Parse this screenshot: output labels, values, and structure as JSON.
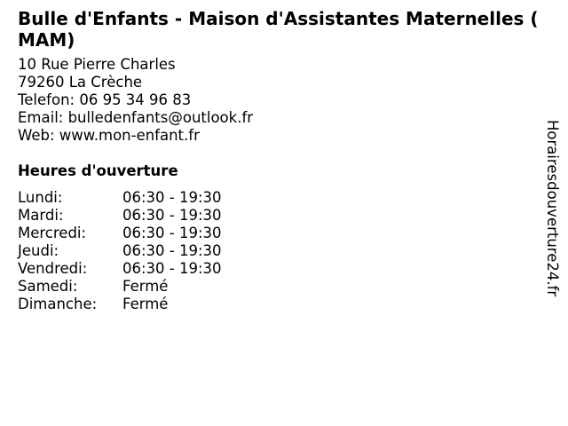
{
  "title": "Bulle d'Enfants - Maison d'Assistantes Maternelles ( MAM)",
  "address": {
    "street": "10 Rue Pierre Charles",
    "city": "79260 La Crèche",
    "phone": "Telefon: 06 95 34 96 83",
    "email": "Email: bulledenfants@outlook.fr",
    "web": "Web: www.mon-enfant.fr"
  },
  "hours_heading": "Heures d'ouverture",
  "hours": [
    {
      "day": "Lundi:",
      "time": "06:30 - 19:30"
    },
    {
      "day": "Mardi:",
      "time": "06:30 - 19:30"
    },
    {
      "day": "Mercredi:",
      "time": "06:30 - 19:30"
    },
    {
      "day": "Jeudi:",
      "time": "06:30 - 19:30"
    },
    {
      "day": "Vendredi:",
      "time": "06:30 - 19:30"
    },
    {
      "day": "Samedi:",
      "time": "Fermé"
    },
    {
      "day": "Dimanche:",
      "time": "Fermé"
    }
  ],
  "watermark": "Horairesdouverture24.fr"
}
